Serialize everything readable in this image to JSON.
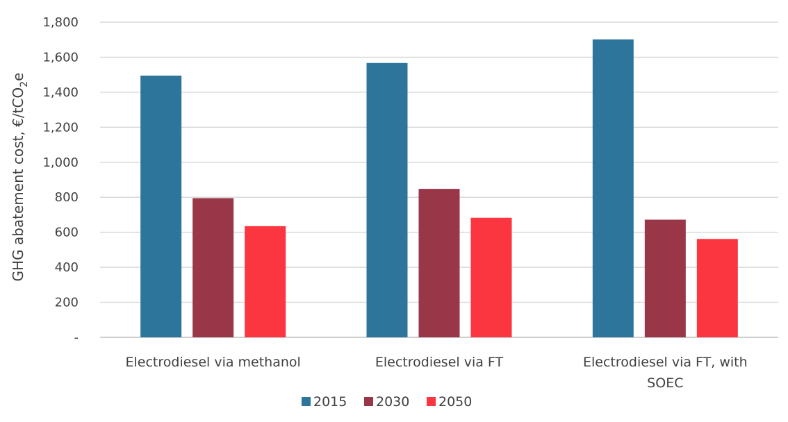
{
  "chart_data": {
    "type": "bar",
    "categories": [
      [
        "Electrodiesel via methanol"
      ],
      [
        "Electrodiesel via FT"
      ],
      [
        "Electrodiesel via FT, with",
        "SOEC"
      ]
    ],
    "series": [
      {
        "name": "2015",
        "color": "#2e759c",
        "values": [
          1495,
          1567,
          1702
        ]
      },
      {
        "name": "2030",
        "color": "#993648",
        "values": [
          795,
          848,
          672
        ]
      },
      {
        "name": "2050",
        "color": "#fc3640",
        "values": [
          635,
          683,
          562
        ]
      }
    ],
    "ylabel": {
      "main": "GHG abatement cost, €/tCO",
      "sub": "2",
      "suffix": "e"
    },
    "ylim": [
      0,
      1800
    ],
    "yticks": [
      0,
      200,
      400,
      600,
      800,
      1000,
      1200,
      1400,
      1600,
      1800
    ],
    "ytick_labels": [
      "-",
      "200",
      "400",
      "600",
      "800",
      "1,000",
      "1,200",
      "1,400",
      "1,600",
      "1,800"
    ],
    "grid": true,
    "legend_position": "bottom",
    "gridline_color": "#d9d9d9",
    "axis_color": "#bfbfbf"
  }
}
